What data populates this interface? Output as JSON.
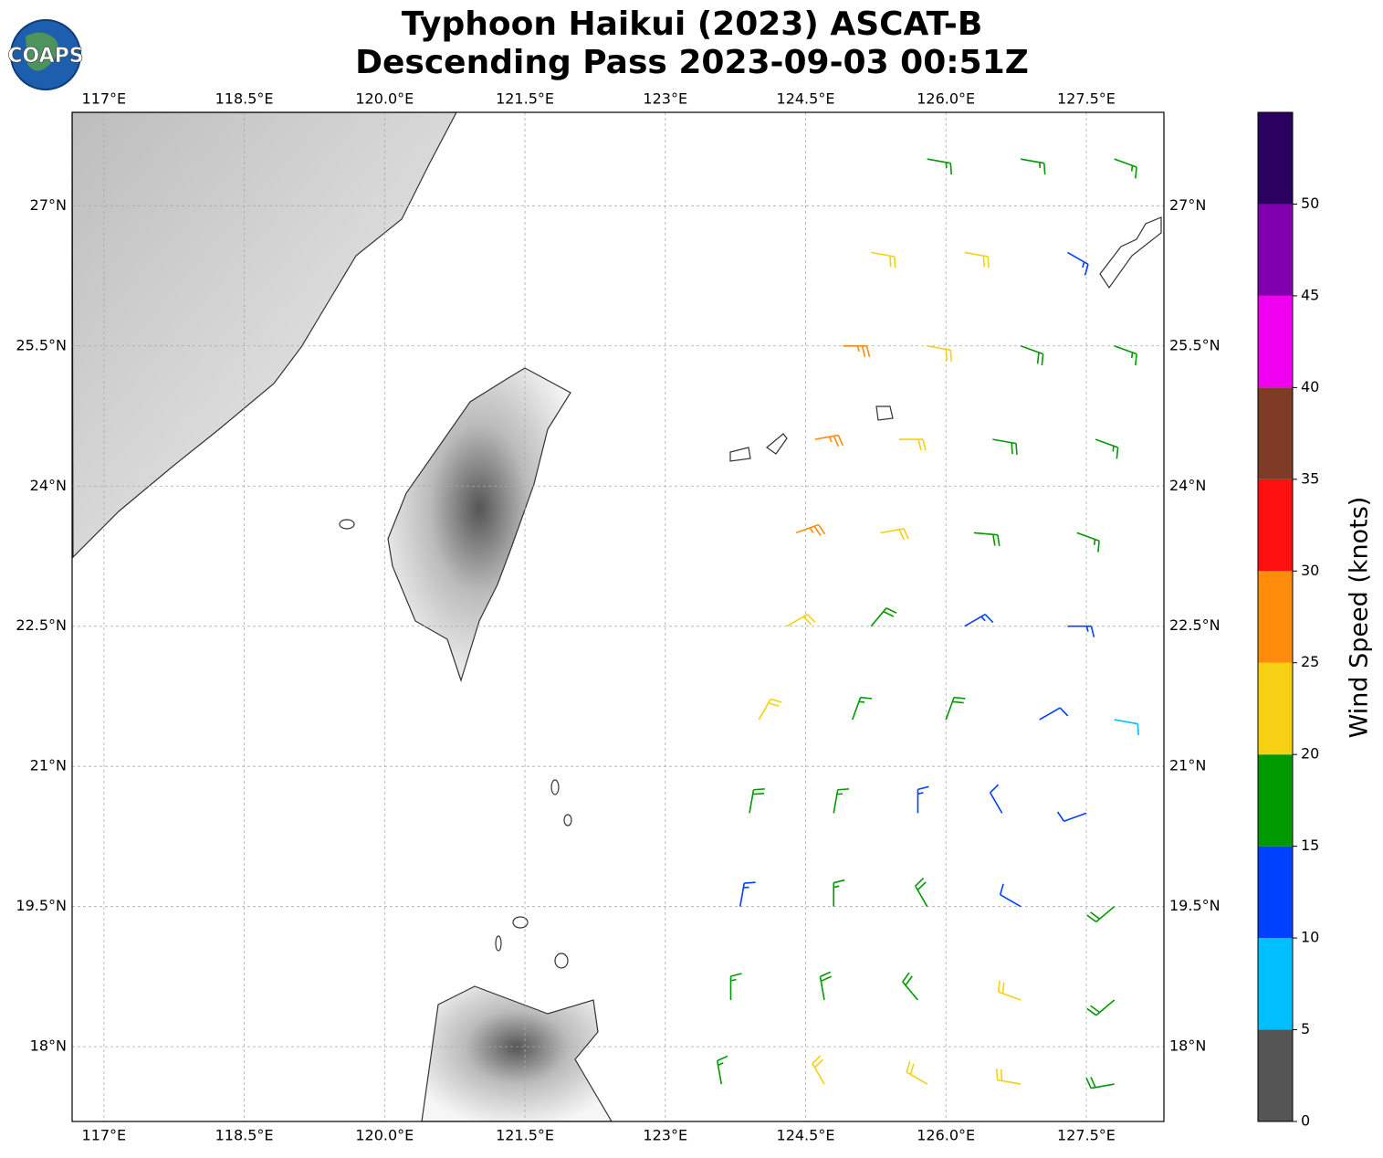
{
  "logo": "COAPS",
  "chart_data": {
    "type": "barbs",
    "title": "Typhoon Haikui (2023) ASCAT-B",
    "subtitle": "Descending Pass 2023-09-03 00:51Z",
    "xlim": [
      116.66,
      128.33
    ],
    "ylim": [
      17.2,
      28.0
    ],
    "xticks": [
      {
        "value": 117,
        "label": "117°E"
      },
      {
        "value": 118.5,
        "label": "118.5°E"
      },
      {
        "value": 120,
        "label": "120.0°E"
      },
      {
        "value": 121.5,
        "label": "121.5°E"
      },
      {
        "value": 123,
        "label": "123°E"
      },
      {
        "value": 124.5,
        "label": "124.5°E"
      },
      {
        "value": 126,
        "label": "126.0°E"
      },
      {
        "value": 127.5,
        "label": "127.5°E"
      }
    ],
    "yticks": [
      {
        "value": 18,
        "label": "18°N"
      },
      {
        "value": 19.5,
        "label": "19.5°N"
      },
      {
        "value": 21,
        "label": "21°N"
      },
      {
        "value": 22.5,
        "label": "22.5°N"
      },
      {
        "value": 24,
        "label": "24°N"
      },
      {
        "value": 25.5,
        "label": "25.5°N"
      },
      {
        "value": 27,
        "label": "27°N"
      }
    ],
    "grid": true,
    "colorbar": {
      "label": "Wind Speed (knots)",
      "lim": [
        0,
        55
      ],
      "ticks": [
        0,
        5,
        10,
        15,
        20,
        25,
        30,
        35,
        40,
        45,
        50
      ],
      "bounds": [
        0,
        5,
        10,
        15,
        20,
        25,
        30,
        35,
        40,
        45,
        50,
        55
      ],
      "colors": [
        "#555555",
        "#00bfff",
        "#0040ff",
        "#009900",
        "#f8d013",
        "#ff8c0a",
        "#ff1010",
        "#7f3b25",
        "#f000f0",
        "#8000b0",
        "#2a0060"
      ]
    },
    "barbs": [
      {
        "lon": 125.8,
        "lat": 27.5,
        "speed": 17,
        "direction": 100
      },
      {
        "lon": 126.8,
        "lat": 27.5,
        "speed": 17,
        "direction": 100
      },
      {
        "lon": 127.8,
        "lat": 27.5,
        "speed": 16,
        "direction": 110
      },
      {
        "lon": 125.2,
        "lat": 26.5,
        "speed": 22,
        "direction": 100
      },
      {
        "lon": 126.2,
        "lat": 26.5,
        "speed": 20,
        "direction": 100
      },
      {
        "lon": 127.3,
        "lat": 26.5,
        "speed": 13,
        "direction": 120
      },
      {
        "lon": 124.9,
        "lat": 25.5,
        "speed": 27,
        "direction": 90
      },
      {
        "lon": 125.8,
        "lat": 25.5,
        "speed": 22,
        "direction": 100
      },
      {
        "lon": 126.8,
        "lat": 25.5,
        "speed": 18,
        "direction": 110
      },
      {
        "lon": 127.8,
        "lat": 25.5,
        "speed": 17,
        "direction": 110
      },
      {
        "lon": 124.6,
        "lat": 24.5,
        "speed": 27,
        "direction": 80
      },
      {
        "lon": 125.5,
        "lat": 24.5,
        "speed": 22,
        "direction": 90
      },
      {
        "lon": 126.5,
        "lat": 24.5,
        "speed": 18,
        "direction": 100
      },
      {
        "lon": 127.6,
        "lat": 24.5,
        "speed": 17,
        "direction": 110
      },
      {
        "lon": 124.4,
        "lat": 23.5,
        "speed": 25,
        "direction": 70
      },
      {
        "lon": 125.3,
        "lat": 23.5,
        "speed": 22,
        "direction": 80
      },
      {
        "lon": 126.3,
        "lat": 23.5,
        "speed": 18,
        "direction": 95
      },
      {
        "lon": 127.4,
        "lat": 23.5,
        "speed": 16,
        "direction": 110
      },
      {
        "lon": 124.3,
        "lat": 22.5,
        "speed": 22,
        "direction": 60
      },
      {
        "lon": 125.2,
        "lat": 22.5,
        "speed": 18,
        "direction": 40
      },
      {
        "lon": 126.2,
        "lat": 22.5,
        "speed": 14,
        "direction": 60
      },
      {
        "lon": 127.3,
        "lat": 22.5,
        "speed": 13,
        "direction": 90
      },
      {
        "lon": 124.0,
        "lat": 21.5,
        "speed": 22,
        "direction": 30
      },
      {
        "lon": 125.0,
        "lat": 21.5,
        "speed": 17,
        "direction": 20
      },
      {
        "lon": 126.0,
        "lat": 21.5,
        "speed": 18,
        "direction": 20
      },
      {
        "lon": 127.0,
        "lat": 21.5,
        "speed": 12,
        "direction": 60
      },
      {
        "lon": 127.8,
        "lat": 21.5,
        "speed": 8,
        "direction": 100
      },
      {
        "lon": 123.9,
        "lat": 20.5,
        "speed": 18,
        "direction": 10
      },
      {
        "lon": 124.8,
        "lat": 20.5,
        "speed": 17,
        "direction": 10
      },
      {
        "lon": 125.7,
        "lat": 20.5,
        "speed": 13,
        "direction": 0
      },
      {
        "lon": 126.6,
        "lat": 20.5,
        "speed": 10,
        "direction": 330
      },
      {
        "lon": 127.5,
        "lat": 20.5,
        "speed": 12,
        "direction": 250
      },
      {
        "lon": 123.8,
        "lat": 19.5,
        "speed": 14,
        "direction": 10
      },
      {
        "lon": 124.8,
        "lat": 19.5,
        "speed": 17,
        "direction": 0
      },
      {
        "lon": 125.8,
        "lat": 19.5,
        "speed": 18,
        "direction": 330
      },
      {
        "lon": 126.8,
        "lat": 19.5,
        "speed": 12,
        "direction": 300
      },
      {
        "lon": 127.8,
        "lat": 19.5,
        "speed": 18,
        "direction": 230
      },
      {
        "lon": 123.7,
        "lat": 18.5,
        "speed": 15,
        "direction": 0
      },
      {
        "lon": 124.7,
        "lat": 18.5,
        "speed": 18,
        "direction": 350
      },
      {
        "lon": 125.7,
        "lat": 18.5,
        "speed": 18,
        "direction": 320
      },
      {
        "lon": 126.8,
        "lat": 18.5,
        "speed": 22,
        "direction": 290
      },
      {
        "lon": 127.8,
        "lat": 18.5,
        "speed": 18,
        "direction": 230
      },
      {
        "lon": 123.6,
        "lat": 17.6,
        "speed": 17,
        "direction": 350
      },
      {
        "lon": 124.7,
        "lat": 17.6,
        "speed": 22,
        "direction": 330
      },
      {
        "lon": 125.8,
        "lat": 17.6,
        "speed": 22,
        "direction": 300
      },
      {
        "lon": 126.8,
        "lat": 17.6,
        "speed": 20,
        "direction": 280
      },
      {
        "lon": 127.8,
        "lat": 17.6,
        "speed": 18,
        "direction": 260
      }
    ]
  }
}
